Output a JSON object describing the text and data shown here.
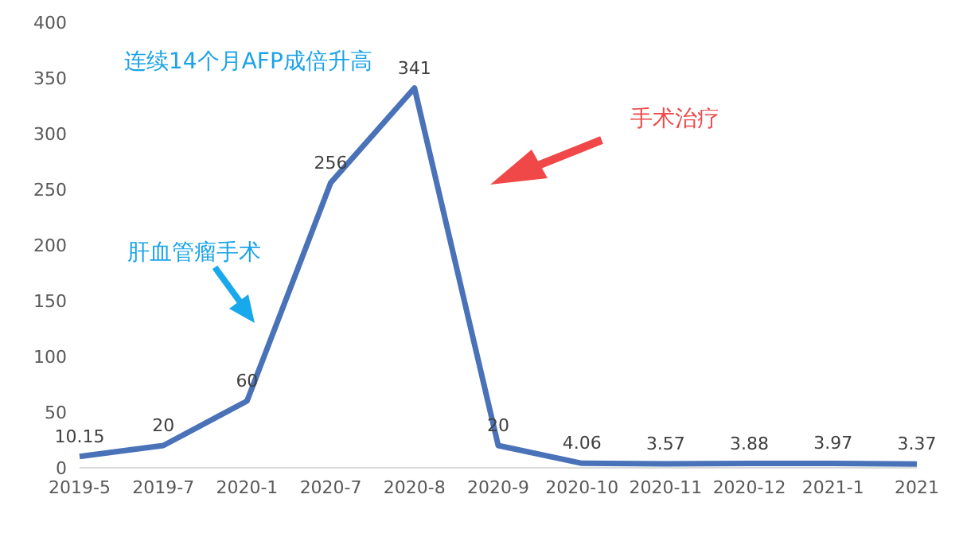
{
  "chart_data": {
    "type": "line",
    "categories": [
      "2019-5",
      "2019-7",
      "2020-1",
      "2020-7",
      "2020-8",
      "2020-9",
      "2020-10",
      "2020-11",
      "2020-12",
      "2021-1",
      "2021"
    ],
    "series": [
      {
        "color": "#4a72b8",
        "values": [
          10.15,
          20,
          60,
          256,
          341,
          20,
          4.06,
          3.57,
          3.88,
          3.97,
          3.37
        ]
      }
    ],
    "ylim": [
      0,
      400
    ],
    "yticks": [
      0,
      50,
      100,
      150,
      200,
      250,
      300,
      350,
      400
    ],
    "grid": false,
    "marker": "none",
    "line_style": "solid",
    "data_labels": true,
    "annotations": [
      "连续14个月AFP成倍升高",
      "肝血管瘤手术",
      "手术治疗"
    ]
  }
}
